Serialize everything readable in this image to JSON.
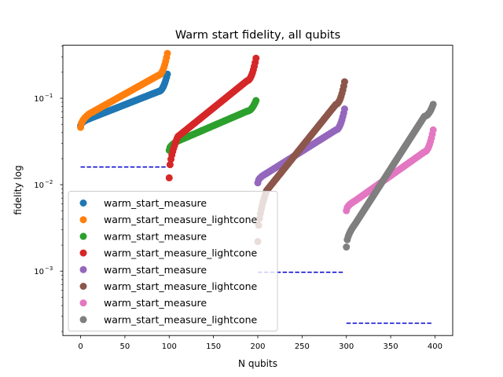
{
  "chart_data": {
    "type": "scatter",
    "title": "Warm start fidelity, all qubits",
    "xlabel": "N qubits",
    "ylabel": "fidelity log",
    "xlim": [
      -20,
      420
    ],
    "ylim": [
      0.00018,
      0.41
    ],
    "yscale": "log",
    "grid": false,
    "legend_position": "lower-left",
    "x_ticks": [
      0,
      50,
      100,
      150,
      200,
      250,
      300,
      350,
      400
    ],
    "y_ticks": [
      {
        "value": 0.001,
        "label": "10",
        "exp": "−3"
      },
      {
        "value": 0.01,
        "label": "10",
        "exp": "−2"
      },
      {
        "value": 0.1,
        "label": "10",
        "exp": "−1"
      }
    ],
    "series": [
      {
        "name": "warm_start_measure",
        "color": "#1f77b4",
        "x_start": 0,
        "x_end": 98,
        "n": 99,
        "y_low": 0.048,
        "y_a": 0.058,
        "y_b": 0.12,
        "y_high": 0.19
      },
      {
        "name": "warm_start_measure_lightcone",
        "color": "#ff7f0e",
        "x_start": 0,
        "x_end": 98,
        "n": 99,
        "y_low": 0.046,
        "y_a": 0.066,
        "y_b": 0.185,
        "y_high": 0.33
      },
      {
        "name": "warm_start_measure",
        "color": "#2ca02c",
        "x_start": 100,
        "x_end": 198,
        "n": 99,
        "y_low": 0.025,
        "y_a": 0.032,
        "y_b": 0.071,
        "y_high": 0.094
      },
      {
        "name": "warm_start_measure_lightcone",
        "color": "#d62728",
        "x_start": 100,
        "x_end": 198,
        "n": 99,
        "y_low": 0.012,
        "y_a": 0.036,
        "y_b": 0.16,
        "y_high": 0.29
      },
      {
        "name": "warm_start_measure",
        "color": "#9467bd",
        "x_start": 200,
        "x_end": 298,
        "n": 99,
        "y_low": 0.0105,
        "y_a": 0.0135,
        "y_b": 0.043,
        "y_high": 0.075
      },
      {
        "name": "warm_start_measure_lightcone",
        "color": "#8c564b",
        "x_start": 200,
        "x_end": 298,
        "n": 99,
        "y_low": 0.0022,
        "y_a": 0.0085,
        "y_b": 0.085,
        "y_high": 0.155
      },
      {
        "name": "warm_start_measure",
        "color": "#e377c2",
        "x_start": 300,
        "x_end": 398,
        "n": 99,
        "y_low": 0.005,
        "y_a": 0.0065,
        "y_b": 0.024,
        "y_high": 0.043
      },
      {
        "name": "warm_start_measure_lightcone",
        "color": "#7f7f7f",
        "x_start": 300,
        "x_end": 398,
        "n": 99,
        "y_low": 0.0019,
        "y_a": 0.0035,
        "y_b": 0.062,
        "y_high": 0.085
      }
    ],
    "reference_lines": [
      {
        "x": [
          0,
          98
        ],
        "y": 0.016,
        "color": "#0000cd"
      },
      {
        "x": [
          200,
          298
        ],
        "y": 0.00097,
        "color": "#0000cd"
      },
      {
        "x": [
          300,
          398
        ],
        "y": 0.00025,
        "color": "#0000cd"
      }
    ]
  }
}
